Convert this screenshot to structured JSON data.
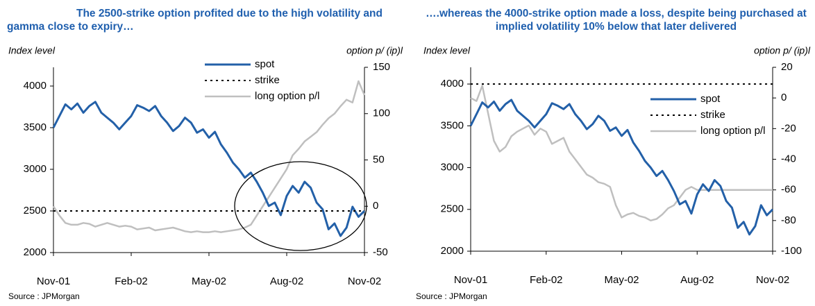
{
  "chart_data": [
    {
      "type": "line",
      "title": "The 2500-strike option profited due to the high volatility and gamma close to expiry…",
      "y_label": "Index level",
      "y2_label": "option p/ (ip)l",
      "source": "Source : JPMorgan",
      "categories": [
        "Nov-01",
        null,
        null,
        null,
        null,
        null,
        null,
        null,
        null,
        null,
        null,
        null,
        null,
        "Feb-02",
        null,
        null,
        null,
        null,
        null,
        null,
        null,
        null,
        null,
        null,
        null,
        null,
        "May-02",
        null,
        null,
        null,
        null,
        null,
        null,
        null,
        null,
        null,
        null,
        null,
        null,
        "Aug-02",
        null,
        null,
        null,
        null,
        null,
        null,
        null,
        null,
        null,
        null,
        null,
        null,
        "Nov-02"
      ],
      "ylim": [
        2000,
        4225
      ],
      "yticks": [
        2000,
        2500,
        3000,
        3500,
        4000
      ],
      "y2lim": [
        -50,
        150
      ],
      "y2ticks": [
        -50,
        0,
        50,
        100,
        150
      ],
      "legend": "upper center",
      "series": [
        {
          "name": "spot",
          "color": "#2360a8",
          "linestyle": "solid",
          "values": [
            3500,
            3640,
            3780,
            3720,
            3790,
            3680,
            3760,
            3810,
            3680,
            3620,
            3560,
            3480,
            3560,
            3640,
            3770,
            3740,
            3700,
            3760,
            3640,
            3560,
            3460,
            3520,
            3620,
            3560,
            3440,
            3480,
            3380,
            3450,
            3300,
            3200,
            3080,
            3000,
            2900,
            2960,
            2850,
            2720,
            2560,
            2600,
            2450,
            2680,
            2800,
            2720,
            2850,
            2780,
            2600,
            2520,
            2280,
            2350,
            2200,
            2300,
            2550,
            2430,
            2500
          ]
        },
        {
          "name": "strike",
          "color": "#000000",
          "linestyle": "dotted",
          "values": [
            2500,
            2500,
            2500,
            2500,
            2500,
            2500,
            2500,
            2500,
            2500,
            2500,
            2500,
            2500,
            2500,
            2500,
            2500,
            2500,
            2500,
            2500,
            2500,
            2500,
            2500,
            2500,
            2500,
            2500,
            2500,
            2500,
            2500,
            2500,
            2500,
            2500,
            2500,
            2500,
            2500,
            2500,
            2500,
            2500,
            2500,
            2500,
            2500,
            2500,
            2500,
            2500,
            2500,
            2500,
            2500,
            2500,
            2500,
            2500,
            2500,
            2500,
            2500,
            2500,
            2500
          ]
        },
        {
          "name": "long option p/l",
          "color": "#bfbfbf",
          "linestyle": "solid",
          "axis": "y2",
          "values": [
            0,
            -10,
            -18,
            -20,
            -20,
            -18,
            -19,
            -22,
            -20,
            -18,
            -20,
            -22,
            -21,
            -22,
            -25,
            -24,
            -23,
            -26,
            -25,
            -24,
            -23,
            -25,
            -27,
            -28,
            -27,
            -28,
            -28,
            -27,
            -28,
            -27,
            -26,
            -25,
            -23,
            -20,
            -10,
            0,
            10,
            20,
            30,
            40,
            55,
            62,
            70,
            75,
            80,
            88,
            95,
            100,
            108,
            115,
            112,
            135,
            120
          ]
        }
      ]
    },
    {
      "type": "line",
      "title": "….whereas the 4000-strike option made a loss, despite being purchased at implied volatility 10% below that later delivered",
      "y_label": "Index level",
      "y2_label": "option p/ (ip)l",
      "source": "Source : JPMorgan",
      "categories": [
        "Nov-01",
        null,
        null,
        null,
        null,
        null,
        null,
        null,
        null,
        null,
        null,
        null,
        null,
        "Feb-02",
        null,
        null,
        null,
        null,
        null,
        null,
        null,
        null,
        null,
        null,
        null,
        null,
        "May-02",
        null,
        null,
        null,
        null,
        null,
        null,
        null,
        null,
        null,
        null,
        null,
        null,
        "Aug-02",
        null,
        null,
        null,
        null,
        null,
        null,
        null,
        null,
        null,
        null,
        null,
        null,
        "Nov-02"
      ],
      "ylim": [
        2000,
        4200
      ],
      "yticks": [
        2000,
        2500,
        3000,
        3500,
        4000
      ],
      "y2lim": [
        -100,
        20
      ],
      "y2ticks": [
        -100,
        -80,
        -60,
        -40,
        -20,
        0,
        20
      ],
      "legend": "center right",
      "series": [
        {
          "name": "spot",
          "color": "#2360a8",
          "linestyle": "solid",
          "values": [
            3500,
            3640,
            3780,
            3720,
            3790,
            3680,
            3760,
            3810,
            3680,
            3620,
            3560,
            3480,
            3560,
            3640,
            3770,
            3740,
            3700,
            3760,
            3640,
            3560,
            3460,
            3520,
            3620,
            3560,
            3440,
            3480,
            3380,
            3450,
            3300,
            3200,
            3080,
            3000,
            2900,
            2960,
            2850,
            2720,
            2560,
            2600,
            2450,
            2680,
            2800,
            2720,
            2850,
            2780,
            2600,
            2520,
            2280,
            2350,
            2200,
            2300,
            2550,
            2430,
            2500
          ]
        },
        {
          "name": "strike",
          "color": "#000000",
          "linestyle": "dotted",
          "values": [
            4000,
            4000,
            4000,
            4000,
            4000,
            4000,
            4000,
            4000,
            4000,
            4000,
            4000,
            4000,
            4000,
            4000,
            4000,
            4000,
            4000,
            4000,
            4000,
            4000,
            4000,
            4000,
            4000,
            4000,
            4000,
            4000,
            4000,
            4000,
            4000,
            4000,
            4000,
            4000,
            4000,
            4000,
            4000,
            4000,
            4000,
            4000,
            4000,
            4000,
            4000,
            4000,
            4000,
            4000,
            4000,
            4000,
            4000,
            4000,
            4000,
            4000,
            4000,
            4000,
            4000
          ]
        },
        {
          "name": "long option p/l",
          "color": "#bfbfbf",
          "linestyle": "solid",
          "axis": "y2",
          "values": [
            0,
            -2,
            8,
            -10,
            -28,
            -35,
            -32,
            -25,
            -22,
            -20,
            -18,
            -24,
            -20,
            -22,
            -30,
            -28,
            -26,
            -35,
            -40,
            -45,
            -50,
            -52,
            -55,
            -56,
            -58,
            -70,
            -78,
            -76,
            -75,
            -77,
            -78,
            -80,
            -79,
            -76,
            -72,
            -70,
            -65,
            -60,
            -58,
            -60,
            -60,
            -60,
            -60,
            -60,
            -60,
            -60,
            -60,
            -60,
            -60,
            -60,
            -60,
            -60,
            -60
          ]
        }
      ]
    }
  ]
}
